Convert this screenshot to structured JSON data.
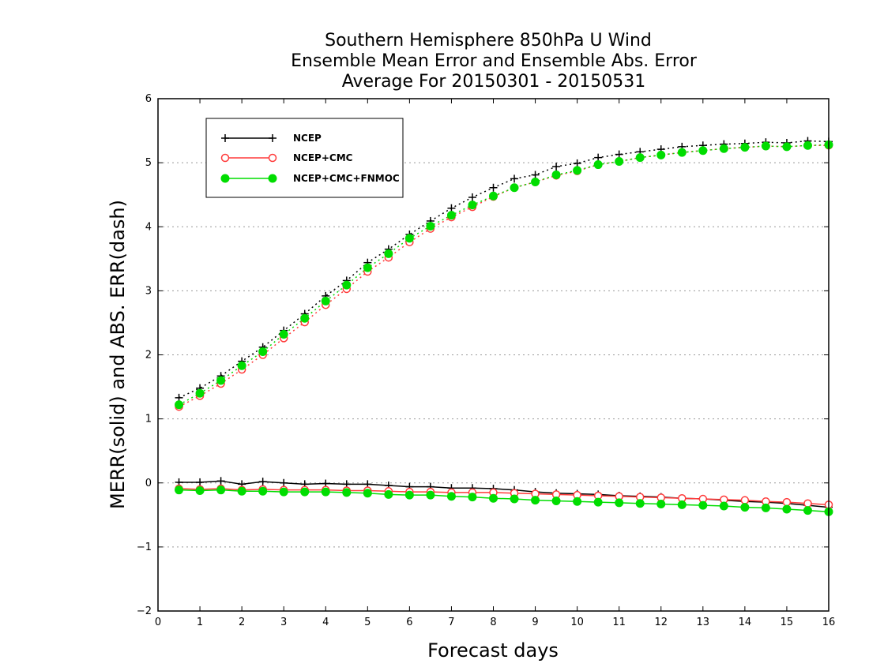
{
  "chart_data": {
    "type": "line",
    "title_lines": [
      "Southern Hemisphere 850hPa U Wind",
      "Ensemble Mean Error and Ensemble Abs. Error",
      "Average For 20150301 - 20150531"
    ],
    "xlabel": "Forecast days",
    "ylabel": "MERR(solid) and ABS. ERR(dash)",
    "xlim": [
      0,
      16
    ],
    "ylim": [
      -2,
      6
    ],
    "xticks": [
      "0",
      "1",
      "2",
      "3",
      "4",
      "5",
      "6",
      "7",
      "8",
      "9",
      "10",
      "11",
      "12",
      "13",
      "14",
      "15",
      "16"
    ],
    "yticks": [
      "−2",
      "−1",
      "0",
      "1",
      "2",
      "3",
      "4",
      "5",
      "6"
    ],
    "grid": "horizontal dotted",
    "legend_position": "top-left",
    "x": [
      0.5,
      1,
      1.5,
      2,
      2.5,
      3,
      3.5,
      4,
      4.5,
      5,
      5.5,
      6,
      6.5,
      7,
      7.5,
      8,
      8.5,
      9,
      9.5,
      10,
      10.5,
      11,
      11.5,
      12,
      12.5,
      13,
      13.5,
      14,
      14.5,
      15,
      15.5,
      16
    ],
    "series": [
      {
        "name": "NCEP",
        "color": "#000000",
        "marker": "plus",
        "merr": [
          0.01,
          0.01,
          0.03,
          -0.02,
          0.02,
          0.0,
          -0.02,
          -0.01,
          -0.02,
          -0.02,
          -0.04,
          -0.06,
          -0.06,
          -0.08,
          -0.08,
          -0.09,
          -0.11,
          -0.14,
          -0.16,
          -0.17,
          -0.18,
          -0.2,
          -0.21,
          -0.22,
          -0.24,
          -0.25,
          -0.27,
          -0.29,
          -0.3,
          -0.32,
          -0.35,
          -0.38
        ],
        "abs_err": [
          1.33,
          1.48,
          1.67,
          1.9,
          2.12,
          2.38,
          2.64,
          2.92,
          3.16,
          3.44,
          3.65,
          3.88,
          4.09,
          4.29,
          4.46,
          4.61,
          4.75,
          4.81,
          4.94,
          4.99,
          5.08,
          5.13,
          5.17,
          5.21,
          5.25,
          5.27,
          5.29,
          5.3,
          5.32,
          5.31,
          5.34,
          5.33
        ]
      },
      {
        "name": "NCEP+CMC",
        "color": "#ff3b3b",
        "marker": "open-circle",
        "merr": [
          -0.09,
          -0.1,
          -0.09,
          -0.11,
          -0.1,
          -0.11,
          -0.11,
          -0.11,
          -0.12,
          -0.12,
          -0.13,
          -0.14,
          -0.14,
          -0.15,
          -0.15,
          -0.15,
          -0.16,
          -0.17,
          -0.18,
          -0.19,
          -0.2,
          -0.21,
          -0.22,
          -0.23,
          -0.24,
          -0.25,
          -0.26,
          -0.27,
          -0.29,
          -0.3,
          -0.32,
          -0.34
        ],
        "abs_err": [
          1.19,
          1.36,
          1.55,
          1.77,
          2.0,
          2.26,
          2.51,
          2.78,
          3.03,
          3.3,
          3.52,
          3.76,
          3.97,
          4.15,
          4.31,
          4.47,
          4.61,
          4.7,
          4.8,
          4.87,
          4.97,
          5.02,
          5.08,
          5.12,
          5.16,
          5.19,
          5.22,
          5.24,
          5.26,
          5.25,
          5.27,
          5.27
        ]
      },
      {
        "name": "NCEP+CMC+FNMOC",
        "color": "#00dd00",
        "marker": "filled-circle",
        "merr": [
          -0.11,
          -0.12,
          -0.11,
          -0.13,
          -0.13,
          -0.14,
          -0.14,
          -0.14,
          -0.15,
          -0.16,
          -0.18,
          -0.19,
          -0.19,
          -0.21,
          -0.22,
          -0.24,
          -0.25,
          -0.27,
          -0.28,
          -0.29,
          -0.3,
          -0.31,
          -0.32,
          -0.33,
          -0.34,
          -0.35,
          -0.36,
          -0.38,
          -0.39,
          -0.41,
          -0.43,
          -0.45
        ],
        "abs_err": [
          1.22,
          1.4,
          1.6,
          1.83,
          2.05,
          2.32,
          2.57,
          2.84,
          3.09,
          3.36,
          3.58,
          3.82,
          4.01,
          4.18,
          4.34,
          4.48,
          4.61,
          4.7,
          4.81,
          4.88,
          4.97,
          5.02,
          5.08,
          5.12,
          5.16,
          5.19,
          5.22,
          5.24,
          5.26,
          5.25,
          5.27,
          5.28
        ]
      }
    ]
  }
}
